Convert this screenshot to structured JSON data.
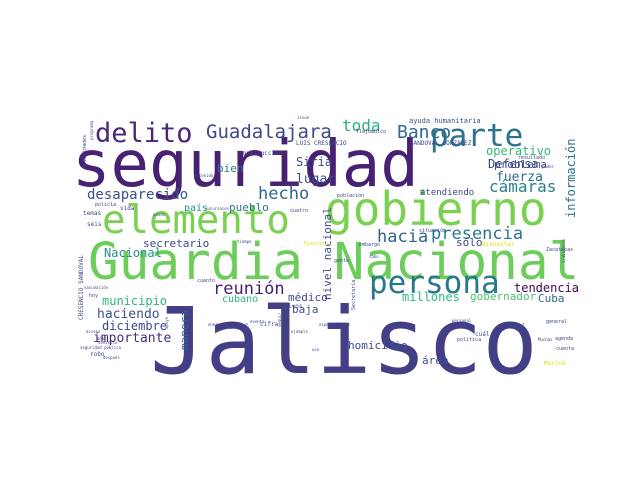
{
  "words": [
    {
      "text": "Jalisco",
      "color": "#433e85"
    },
    {
      "text": "seguridad",
      "color": "#482173"
    },
    {
      "text": "Guardia Nacional",
      "color": "#6ccd5a"
    },
    {
      "text": "gobierno",
      "color": "#7ad151"
    },
    {
      "text": "elemento",
      "color": "#7ad151"
    },
    {
      "text": "parte",
      "color": "#2c728e"
    },
    {
      "text": "persona",
      "color": "#2a788e"
    },
    {
      "text": "delito",
      "color": "#482878"
    },
    {
      "text": "Guadalajara",
      "color": "#3e4989"
    },
    {
      "text": "Banco",
      "color": "#31688e"
    },
    {
      "text": "toda",
      "color": "#29af7f"
    },
    {
      "text": "presencia",
      "color": "#2a788e"
    },
    {
      "text": "hacia",
      "color": "#33638d"
    },
    {
      "text": "cámaras",
      "color": "#26828e"
    },
    {
      "text": "hecho",
      "color": "#31688e"
    },
    {
      "text": "desaparecido",
      "color": "#3b528b"
    },
    {
      "text": "reunión",
      "color": "#481f70"
    },
    {
      "text": "lugar",
      "color": "#3b528b"
    },
    {
      "text": "Siria",
      "color": "#3e4989"
    },
    {
      "text": "operativo",
      "color": "#35b779"
    },
    {
      "text": "problema",
      "color": "#3b528b"
    },
    {
      "text": "fuerza",
      "color": "#2c728e"
    },
    {
      "text": "Defensa",
      "color": "#3e4989"
    },
    {
      "text": "información",
      "color": "#2c728e"
    },
    {
      "text": "tendencia",
      "color": "#440154"
    },
    {
      "text": "Nacional",
      "color": "#21918c"
    },
    {
      "text": "haciendo",
      "color": "#3b528b"
    },
    {
      "text": "importante",
      "color": "#472c7a"
    },
    {
      "text": "diciembre",
      "color": "#3e4989"
    },
    {
      "text": "municipio",
      "color": "#2fb47c"
    },
    {
      "text": "secretario",
      "color": "#3e4989"
    },
    {
      "text": "nivel nacional",
      "color": "#3e4989"
    },
    {
      "text": "sólo",
      "color": "#3e4989"
    },
    {
      "text": "millones",
      "color": "#35b779"
    },
    {
      "text": "gobernador",
      "color": "#4ac16d"
    },
    {
      "text": "Cuba",
      "color": "#31688e"
    },
    {
      "text": "homicidio",
      "color": "#3b528b"
    },
    {
      "text": "médico",
      "color": "#3e4989"
    },
    {
      "text": "baja",
      "color": "#3b528b"
    },
    {
      "text": "manera",
      "color": "#33638d"
    },
    {
      "text": "pueblo",
      "color": "#2a788e"
    },
    {
      "text": "bien",
      "color": "#2a788e"
    },
    {
      "text": "país",
      "color": "#21918c"
    },
    {
      "text": "cubano",
      "color": "#2fb47c"
    },
    {
      "text": "área",
      "color": "#3b528b"
    },
    {
      "text": "atendiendo",
      "color": "#3e4989"
    },
    {
      "text": "ayuda humanitaria",
      "color": "#3e4989"
    },
    {
      "text": "Tlajomulco",
      "color": "#46337e"
    },
    {
      "text": "LUIS CRESENCIO",
      "color": "#3e4989"
    },
    {
      "text": "SANDOVAL GONZÁLEZ",
      "color": "#3e4989"
    },
    {
      "text": "CRESENCIO SANDOVAL",
      "color": "#3e4989"
    },
    {
      "text": "Bienestar",
      "color": "#dde318"
    },
    {
      "text": "Ejército",
      "color": "#dde318"
    },
    {
      "text": "Marina",
      "color": "#dde318"
    },
    {
      "text": "construcción",
      "color": "#3e4989"
    },
    {
      "text": "resultado",
      "color": "#3e4989"
    },
    {
      "text": "efectivos",
      "color": "#3e4989"
    },
    {
      "text": "cifra",
      "color": "#3e4989"
    },
    {
      "text": "vida",
      "color": "#3e4989"
    },
    {
      "text": "robo",
      "color": "#3e4989"
    },
    {
      "text": "seis",
      "color": "#3e4989"
    },
    {
      "text": "temas",
      "color": "#3e4989"
    },
    {
      "text": "hoy",
      "color": "#3e4989"
    },
    {
      "text": "gente",
      "color": "#3e4989"
    },
    {
      "text": "cuál",
      "color": "#3e4989"
    },
    {
      "text": "total",
      "color": "#3e4989"
    },
    {
      "text": "Zacatecas",
      "color": "#3e4989"
    },
    {
      "text": "agenda",
      "color": "#3e4989"
    },
    {
      "text": "situación",
      "color": "#3e4989"
    },
    {
      "text": "embargo",
      "color": "#3e4989"
    },
    {
      "text": "cuatro",
      "color": "#3e4989"
    },
    {
      "text": "población",
      "color": "#3e4989"
    },
    {
      "text": "mayor",
      "color": "#3e4989"
    },
    {
      "text": "detenido",
      "color": "#3e4989"
    },
    {
      "text": "policía",
      "color": "#3e4989"
    },
    {
      "text": "puede",
      "color": "#3e4989"
    },
    {
      "text": "sucursales",
      "color": "#3e4989"
    },
    {
      "text": "tiempo",
      "color": "#3e4989"
    },
    {
      "text": "cuanto",
      "color": "#3e4989"
    },
    {
      "text": "enero",
      "color": "#3e4989"
    },
    {
      "text": "trabajo",
      "color": "#3e4989"
    },
    {
      "text": "ejemplo",
      "color": "#3e4989"
    },
    {
      "text": "especialistas",
      "color": "#3e4989"
    },
    {
      "text": "personal",
      "color": "#3e4989"
    },
    {
      "text": "política",
      "color": "#3e4989"
    },
    {
      "text": "Muchas",
      "color": "#3e4989"
    },
    {
      "text": "cuenta",
      "color": "#3e4989"
    },
    {
      "text": "general",
      "color": "#3e4989"
    },
    {
      "text": "poder",
      "color": "#3e4989"
    },
    {
      "text": "issue",
      "color": "#3e4989"
    },
    {
      "text": "programa",
      "color": "#3e4989"
    },
    {
      "text": "autoridades",
      "color": "#3e4989"
    },
    {
      "text": "años",
      "color": "#3e4989"
    },
    {
      "text": "después",
      "color": "#3e4989"
    },
    {
      "text": "seguridad pública",
      "color": "#3e4989"
    },
    {
      "text": "vehículo",
      "color": "#3e4989"
    },
    {
      "text": "Secretaría",
      "color": "#3e4989"
    },
    {
      "text": "cabo",
      "color": "#3e4989"
    },
    {
      "text": "apoyo",
      "color": "#3e4989"
    },
    {
      "text": "seguir",
      "color": "#3e4989"
    },
    {
      "text": "Ejecutivo",
      "color": "#3e4989"
    },
    {
      "text": "uso",
      "color": "#3e4989"
    },
    {
      "text": "trabajando",
      "color": "#3e4989"
    },
    {
      "text": "evento",
      "color": "#3e4989"
    },
    {
      "text": "vacunación",
      "color": "#3e4989"
    },
    {
      "text": "acceso",
      "color": "#3e4989"
    }
  ]
}
